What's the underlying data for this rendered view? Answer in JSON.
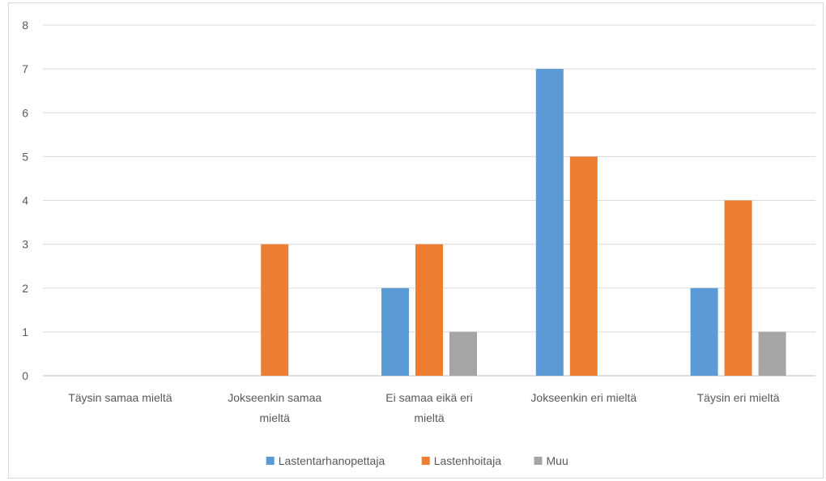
{
  "chart_data": {
    "type": "bar",
    "categories": [
      [
        "Täysin samaa mieltä"
      ],
      [
        "Jokseenkin samaa",
        "mieltä"
      ],
      [
        "Ei samaa eikä eri",
        "mieltä"
      ],
      [
        "Jokseenkin eri mieltä"
      ],
      [
        "Täysin eri mieltä"
      ]
    ],
    "series": [
      {
        "name": "Lastentarhanopettaja",
        "color": "#5b9bd5",
        "values": [
          0,
          0,
          2,
          7,
          2
        ]
      },
      {
        "name": "Lastenhoitaja",
        "color": "#ed7d31",
        "values": [
          0,
          3,
          3,
          5,
          4
        ]
      },
      {
        "name": "Muu",
        "color": "#a5a5a5",
        "values": [
          0,
          0,
          1,
          0,
          1
        ]
      }
    ],
    "ylim": [
      0,
      8
    ],
    "yticks": [
      "0",
      "1",
      "2",
      "3",
      "4",
      "5",
      "6",
      "7",
      "8"
    ],
    "grid": true,
    "legend_position": "bottom",
    "title": "",
    "xlabel": "",
    "ylabel": ""
  }
}
